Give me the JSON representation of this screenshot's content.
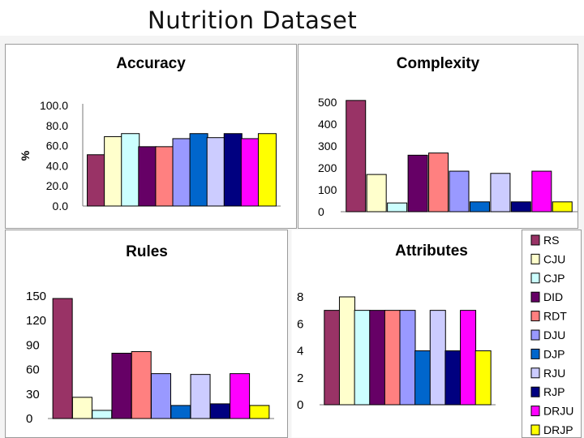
{
  "slide": {
    "title": "Nutrition Dataset"
  },
  "legend": {
    "entries": [
      {
        "label": "RS",
        "color": "#993366"
      },
      {
        "label": "CJU",
        "color": "#ffffcc"
      },
      {
        "label": "CJP",
        "color": "#ccffff"
      },
      {
        "label": "DID",
        "color": "#660066"
      },
      {
        "label": "RDT",
        "color": "#ff8080"
      },
      {
        "label": "DJU",
        "color": "#9999ff"
      },
      {
        "label": "DJP",
        "color": "#0066cc"
      },
      {
        "label": "RJU",
        "color": "#ccccff"
      },
      {
        "label": "RJP",
        "color": "#000080"
      },
      {
        "label": "DRJU",
        "color": "#ff00ff"
      },
      {
        "label": "DRJP",
        "color": "#ffff00"
      }
    ]
  },
  "chart_data": [
    {
      "type": "bar",
      "title": "Accuracy",
      "ylabel": "%",
      "xlabel": "",
      "ylim": [
        0,
        100
      ],
      "yticks": [
        "100.0",
        "80.0",
        "60.0",
        "40.0",
        "20.0",
        "0.0"
      ],
      "categories": [
        "RS",
        "CJU",
        "CJP",
        "DID",
        "RDT",
        "DJU",
        "DJP",
        "RJU",
        "RJP",
        "DRJU",
        "DRJP"
      ],
      "values": [
        51,
        69,
        72,
        59,
        59,
        67,
        72,
        68,
        72,
        67,
        72
      ]
    },
    {
      "type": "bar",
      "title": "Complexity",
      "ylabel": "",
      "xlabel": "",
      "ylim": [
        0,
        500
      ],
      "yticks": [
        "500",
        "400",
        "300",
        "200",
        "100",
        "0"
      ],
      "categories": [
        "RS",
        "CJU",
        "CJP",
        "DID",
        "RDT",
        "DJU",
        "DJP",
        "RJU",
        "RJP",
        "DRJU",
        "DRJP"
      ],
      "values": [
        508,
        170,
        40,
        258,
        268,
        185,
        45,
        175,
        45,
        185,
        45
      ]
    },
    {
      "type": "bar",
      "title": "Rules",
      "ylabel": "",
      "xlabel": "",
      "ylim": [
        0,
        150
      ],
      "yticks": [
        "150",
        "120",
        "90",
        "60",
        "30",
        "0"
      ],
      "categories": [
        "RS",
        "CJU",
        "CJP",
        "DID",
        "RDT",
        "DJU",
        "DJP",
        "RJU",
        "RJP",
        "DRJU",
        "DRJP"
      ],
      "values": [
        147,
        26,
        10,
        80,
        82,
        55,
        16,
        54,
        18,
        55,
        16
      ]
    },
    {
      "type": "bar",
      "title": "Attributes",
      "ylabel": "",
      "xlabel": "",
      "ylim": [
        0,
        8
      ],
      "yticks": [
        "8",
        "6",
        "4",
        "2",
        "0"
      ],
      "categories": [
        "RS",
        "CJU",
        "CJP",
        "DID",
        "RDT",
        "DJU",
        "DJP",
        "RJU",
        "RJP",
        "DRJU",
        "DRJP"
      ],
      "values": [
        7,
        8,
        7,
        7,
        7,
        7,
        4,
        7,
        4,
        7,
        4
      ]
    }
  ]
}
